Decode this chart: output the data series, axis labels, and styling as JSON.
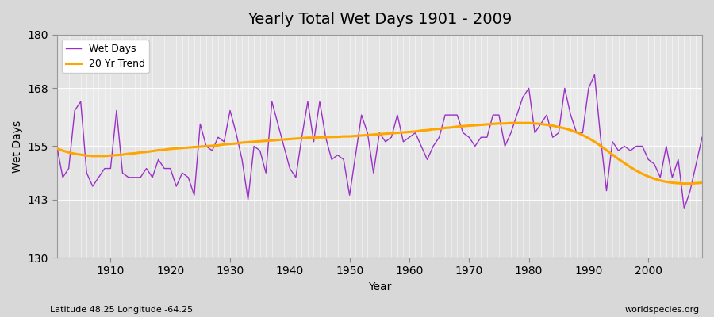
{
  "title": "Yearly Total Wet Days 1901 - 2009",
  "xlabel": "Year",
  "ylabel": "Wet Days",
  "subtitle": "Latitude 48.25 Longitude -64.25",
  "watermark": "worldspecies.org",
  "line_color": "#9B30C8",
  "trend_color": "#FFA500",
  "bg_color": "#DCDCDC",
  "plot_bg": "#E8E8E8",
  "ylim": [
    130,
    180
  ],
  "yticks": [
    130,
    143,
    155,
    168,
    180
  ],
  "xlim": [
    1901,
    2009
  ],
  "xticks": [
    1910,
    1920,
    1930,
    1940,
    1950,
    1960,
    1970,
    1980,
    1990,
    2000
  ],
  "years": [
    1901,
    1902,
    1903,
    1904,
    1905,
    1906,
    1907,
    1908,
    1909,
    1910,
    1911,
    1912,
    1913,
    1914,
    1915,
    1916,
    1917,
    1918,
    1919,
    1920,
    1921,
    1922,
    1923,
    1924,
    1925,
    1926,
    1927,
    1928,
    1929,
    1930,
    1931,
    1932,
    1933,
    1934,
    1935,
    1936,
    1937,
    1938,
    1939,
    1940,
    1941,
    1942,
    1943,
    1944,
    1945,
    1946,
    1947,
    1948,
    1949,
    1950,
    1951,
    1952,
    1953,
    1954,
    1955,
    1956,
    1957,
    1958,
    1959,
    1960,
    1961,
    1962,
    1963,
    1964,
    1965,
    1966,
    1967,
    1968,
    1969,
    1970,
    1971,
    1972,
    1973,
    1974,
    1975,
    1976,
    1977,
    1978,
    1979,
    1980,
    1981,
    1982,
    1983,
    1984,
    1985,
    1986,
    1987,
    1988,
    1989,
    1990,
    1991,
    1992,
    1993,
    1994,
    1995,
    1996,
    1997,
    1998,
    1999,
    2000,
    2001,
    2002,
    2003,
    2004,
    2005,
    2006,
    2007,
    2008,
    2009
  ],
  "wet_days": [
    155,
    148,
    150,
    163,
    165,
    149,
    146,
    148,
    150,
    150,
    163,
    149,
    148,
    148,
    148,
    150,
    148,
    152,
    150,
    150,
    146,
    149,
    148,
    144,
    160,
    155,
    154,
    157,
    156,
    163,
    158,
    152,
    143,
    155,
    154,
    149,
    165,
    160,
    155,
    150,
    148,
    157,
    165,
    156,
    165,
    157,
    152,
    153,
    152,
    144,
    153,
    162,
    158,
    149,
    158,
    156,
    157,
    162,
    156,
    157,
    158,
    155,
    152,
    155,
    157,
    162,
    162,
    162,
    158,
    157,
    155,
    157,
    157,
    162,
    162,
    155,
    158,
    162,
    166,
    168,
    158,
    160,
    162,
    157,
    158,
    168,
    162,
    158,
    158,
    168,
    171,
    157,
    145,
    156,
    154,
    155,
    154,
    155,
    155,
    152,
    151,
    148,
    155,
    148,
    152,
    141,
    145,
    151,
    157
  ],
  "trend_years": [
    1901,
    1902,
    1903,
    1904,
    1905,
    1906,
    1907,
    1908,
    1909,
    1910,
    1911,
    1912,
    1913,
    1914,
    1915,
    1916,
    1917,
    1918,
    1919,
    1920,
    1921,
    1922,
    1923,
    1924,
    1925,
    1926,
    1927,
    1928,
    1929,
    1930,
    1931,
    1932,
    1933,
    1934,
    1935,
    1936,
    1937,
    1938,
    1939,
    1940,
    1941,
    1942,
    1943,
    1944,
    1945,
    1946,
    1947,
    1948,
    1949,
    1950,
    1951,
    1952,
    1953,
    1954,
    1955,
    1956,
    1957,
    1958,
    1959,
    1960,
    1961,
    1962,
    1963,
    1964,
    1965,
    1966,
    1967,
    1968,
    1969,
    1970,
    1971,
    1972,
    1973,
    1974,
    1975,
    1976,
    1977,
    1978,
    1979,
    1980,
    1981,
    1982,
    1983,
    1984,
    1985,
    1986,
    1987,
    1988,
    1989,
    1990,
    1991,
    1992,
    1993,
    1994,
    1995,
    1996,
    1997,
    1998,
    1999,
    2000,
    2001,
    2002,
    2003,
    2004,
    2005,
    2006,
    2007,
    2008,
    2009
  ],
  "trend_values": [
    154.5,
    154.0,
    153.6,
    153.3,
    153.1,
    152.9,
    152.8,
    152.8,
    152.8,
    152.9,
    153.0,
    153.1,
    153.3,
    153.4,
    153.6,
    153.7,
    153.9,
    154.1,
    154.2,
    154.4,
    154.5,
    154.6,
    154.7,
    154.8,
    154.9,
    155.0,
    155.1,
    155.2,
    155.4,
    155.5,
    155.6,
    155.8,
    155.9,
    156.0,
    156.1,
    156.2,
    156.3,
    156.4,
    156.5,
    156.6,
    156.7,
    156.8,
    156.9,
    156.9,
    157.0,
    157.0,
    157.1,
    157.1,
    157.2,
    157.2,
    157.3,
    157.4,
    157.5,
    157.6,
    157.7,
    157.8,
    157.9,
    158.0,
    158.1,
    158.2,
    158.3,
    158.5,
    158.6,
    158.8,
    158.9,
    159.1,
    159.2,
    159.4,
    159.5,
    159.6,
    159.7,
    159.8,
    159.9,
    160.0,
    160.1,
    160.1,
    160.2,
    160.2,
    160.2,
    160.2,
    160.1,
    160.0,
    159.8,
    159.6,
    159.3,
    159.0,
    158.6,
    158.1,
    157.5,
    156.8,
    156.0,
    155.1,
    154.1,
    153.1,
    152.1,
    151.2,
    150.3,
    149.5,
    148.8,
    148.2,
    147.7,
    147.3,
    147.0,
    146.8,
    146.7,
    146.6,
    146.6,
    146.7,
    146.8
  ]
}
